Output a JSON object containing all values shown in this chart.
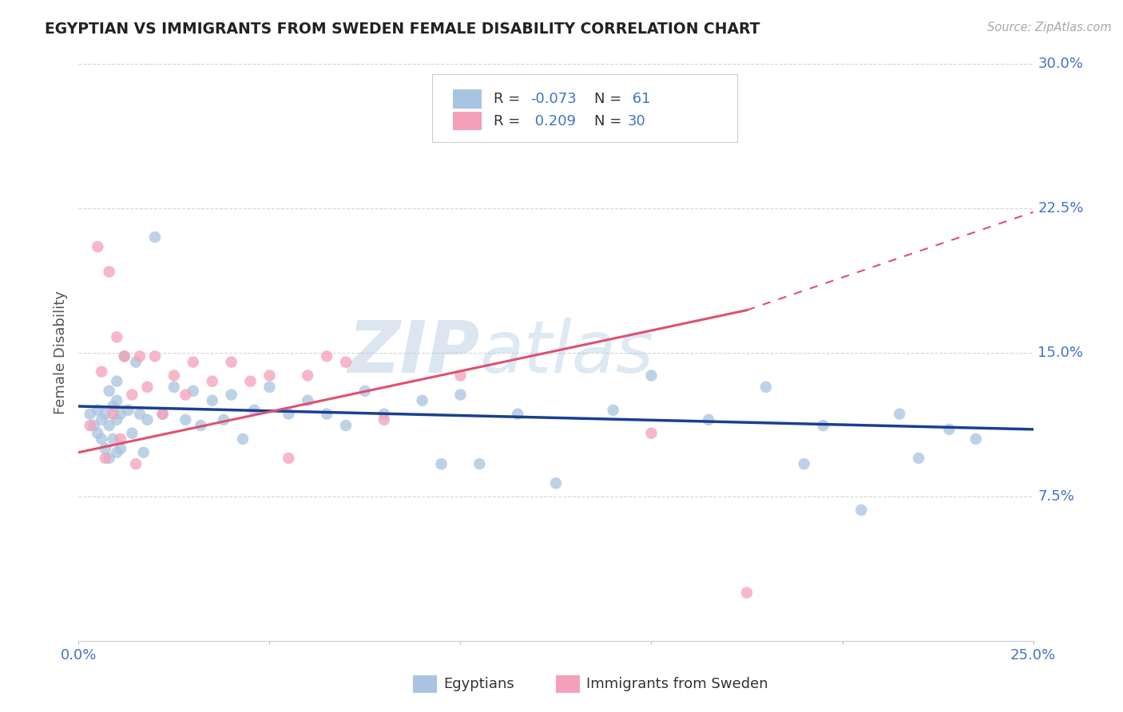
{
  "title": "EGYPTIAN VS IMMIGRANTS FROM SWEDEN FEMALE DISABILITY CORRELATION CHART",
  "source_text": "Source: ZipAtlas.com",
  "ylabel": "Female Disability",
  "xlim": [
    0.0,
    0.25
  ],
  "ylim": [
    0.0,
    0.3
  ],
  "ytick_labels_right": [
    "7.5%",
    "15.0%",
    "22.5%",
    "30.0%"
  ],
  "ytick_values_right": [
    0.075,
    0.15,
    0.225,
    0.3
  ],
  "egyptians_color": "#a8c4e0",
  "sweden_color": "#f4a0b8",
  "trendline_egypt_color": "#1a3f8f",
  "trendline_sweden_color": "#e05070",
  "background_color": "#ffffff",
  "grid_color": "#cccccc",
  "egyptians_x": [
    0.003,
    0.004,
    0.005,
    0.005,
    0.006,
    0.006,
    0.007,
    0.007,
    0.008,
    0.008,
    0.008,
    0.009,
    0.009,
    0.01,
    0.01,
    0.01,
    0.01,
    0.011,
    0.011,
    0.012,
    0.013,
    0.014,
    0.015,
    0.016,
    0.017,
    0.018,
    0.02,
    0.022,
    0.025,
    0.028,
    0.03,
    0.032,
    0.035,
    0.038,
    0.04,
    0.043,
    0.046,
    0.05,
    0.055,
    0.06,
    0.065,
    0.07,
    0.075,
    0.08,
    0.09,
    0.095,
    0.1,
    0.105,
    0.115,
    0.125,
    0.14,
    0.15,
    0.165,
    0.18,
    0.19,
    0.195,
    0.205,
    0.215,
    0.22,
    0.228,
    0.235
  ],
  "egyptians_y": [
    0.118,
    0.112,
    0.12,
    0.108,
    0.115,
    0.105,
    0.118,
    0.1,
    0.13,
    0.112,
    0.095,
    0.122,
    0.105,
    0.135,
    0.125,
    0.115,
    0.098,
    0.118,
    0.1,
    0.148,
    0.12,
    0.108,
    0.145,
    0.118,
    0.098,
    0.115,
    0.21,
    0.118,
    0.132,
    0.115,
    0.13,
    0.112,
    0.125,
    0.115,
    0.128,
    0.105,
    0.12,
    0.132,
    0.118,
    0.125,
    0.118,
    0.112,
    0.13,
    0.118,
    0.125,
    0.092,
    0.128,
    0.092,
    0.118,
    0.082,
    0.12,
    0.138,
    0.115,
    0.132,
    0.092,
    0.112,
    0.068,
    0.118,
    0.095,
    0.11,
    0.105
  ],
  "sweden_x": [
    0.003,
    0.005,
    0.006,
    0.007,
    0.008,
    0.009,
    0.01,
    0.011,
    0.012,
    0.014,
    0.015,
    0.016,
    0.018,
    0.02,
    0.022,
    0.025,
    0.028,
    0.03,
    0.035,
    0.04,
    0.045,
    0.05,
    0.055,
    0.06,
    0.065,
    0.07,
    0.08,
    0.1,
    0.15,
    0.175
  ],
  "sweden_y": [
    0.112,
    0.205,
    0.14,
    0.095,
    0.192,
    0.118,
    0.158,
    0.105,
    0.148,
    0.128,
    0.092,
    0.148,
    0.132,
    0.148,
    0.118,
    0.138,
    0.128,
    0.145,
    0.135,
    0.145,
    0.135,
    0.138,
    0.095,
    0.138,
    0.148,
    0.145,
    0.115,
    0.138,
    0.108,
    0.025
  ],
  "trendline_egypt_x0": 0.0,
  "trendline_egypt_y0": 0.122,
  "trendline_egypt_x1": 0.25,
  "trendline_egypt_y1": 0.11,
  "trendline_sweden_x0": 0.0,
  "trendline_sweden_y0": 0.098,
  "trendline_sweden_x1": 0.175,
  "trendline_sweden_y1": 0.172,
  "trendline_sweden_dash_x1": 0.25,
  "trendline_sweden_dash_y1": 0.223,
  "legend_patch1_color": "#a8c4e0",
  "legend_patch2_color": "#f4a0b8",
  "legend_text1_r": "R = ",
  "legend_text1_rv": "-0.073",
  "legend_text1_n": "N = ",
  "legend_text1_nv": " 61",
  "legend_text2_r": "R =  ",
  "legend_text2_rv": "0.209",
  "legend_text2_n": "N = ",
  "legend_text2_nv": "30",
  "watermark_zip": "ZIP",
  "watermark_atlas": "atlas",
  "bottom_label1": "Egyptians",
  "bottom_label2": "Immigrants from Sweden"
}
